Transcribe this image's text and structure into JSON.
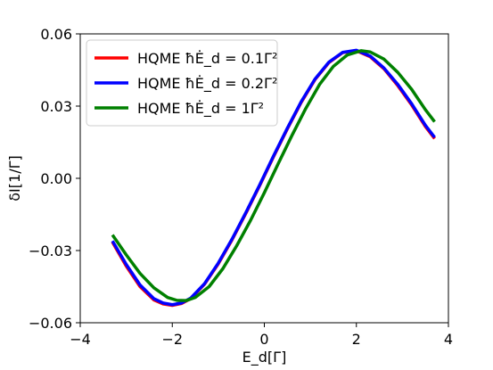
{
  "chart_data": {
    "type": "line",
    "title": "",
    "xlabel": "E_d[Γ]",
    "ylabel": "δI[1/Γ]",
    "xlim": [
      -4,
      4
    ],
    "ylim": [
      -0.06,
      0.06
    ],
    "xticks": [
      -4,
      -2,
      0,
      2,
      4
    ],
    "xtick_labels": [
      "−4",
      "−2",
      "0",
      "2",
      "4"
    ],
    "yticks": [
      -0.06,
      -0.03,
      0.0,
      0.03,
      0.06
    ],
    "ytick_labels": [
      "−0.06",
      "−0.03",
      "0.00",
      "0.03",
      "0.06"
    ],
    "grid": false,
    "legend_position": "top-left",
    "series": [
      {
        "name": "HQME ħĖ_d = 0.1Γ²",
        "color": "#ff0000",
        "x": [
          -3.3,
          -3.0,
          -2.7,
          -2.4,
          -2.2,
          -2.0,
          -1.8,
          -1.6,
          -1.3,
          -1.0,
          -0.7,
          -0.4,
          -0.1,
          0.2,
          0.5,
          0.8,
          1.1,
          1.4,
          1.7,
          2.0,
          2.3,
          2.6,
          2.9,
          3.2,
          3.5,
          3.7
        ],
        "y": [
          -0.0265,
          -0.0365,
          -0.045,
          -0.0505,
          -0.0522,
          -0.0528,
          -0.052,
          -0.05,
          -0.044,
          -0.0355,
          -0.0255,
          -0.0145,
          -0.003,
          0.009,
          0.0205,
          0.0315,
          0.041,
          0.048,
          0.0522,
          0.053,
          0.0505,
          0.0455,
          0.0385,
          0.0305,
          0.0215,
          0.0165
        ]
      },
      {
        "name": "HQME ħĖ_d = 0.2Γ²",
        "color": "#0000ff",
        "x": [
          -3.3,
          -3.0,
          -2.7,
          -2.4,
          -2.2,
          -2.0,
          -1.8,
          -1.6,
          -1.3,
          -1.0,
          -0.7,
          -0.4,
          -0.1,
          0.2,
          0.5,
          0.8,
          1.1,
          1.4,
          1.7,
          2.0,
          2.3,
          2.6,
          2.9,
          3.2,
          3.5,
          3.7
        ],
        "y": [
          -0.026,
          -0.0358,
          -0.0443,
          -0.05,
          -0.0518,
          -0.0525,
          -0.0518,
          -0.0498,
          -0.0438,
          -0.0352,
          -0.0252,
          -0.0142,
          -0.0027,
          0.0093,
          0.0208,
          0.0318,
          0.0412,
          0.0482,
          0.0523,
          0.0532,
          0.0508,
          0.0458,
          0.039,
          0.031,
          0.022,
          0.017
        ]
      },
      {
        "name": "HQME ħĖ_d = 1Γ²",
        "color": "#008000",
        "x": [
          -3.3,
          -3.0,
          -2.7,
          -2.4,
          -2.1,
          -1.9,
          -1.7,
          -1.5,
          -1.2,
          -0.9,
          -0.6,
          -0.3,
          0.0,
          0.3,
          0.6,
          0.9,
          1.2,
          1.5,
          1.8,
          2.1,
          2.3,
          2.6,
          2.9,
          3.2,
          3.5,
          3.7
        ],
        "y": [
          -0.0235,
          -0.0318,
          -0.0395,
          -0.0455,
          -0.0495,
          -0.0507,
          -0.0508,
          -0.0495,
          -0.045,
          -0.0375,
          -0.028,
          -0.0175,
          -0.006,
          0.006,
          0.0178,
          0.029,
          0.039,
          0.0465,
          0.0512,
          0.053,
          0.0525,
          0.0495,
          0.044,
          0.037,
          0.0285,
          0.0235
        ]
      }
    ]
  }
}
